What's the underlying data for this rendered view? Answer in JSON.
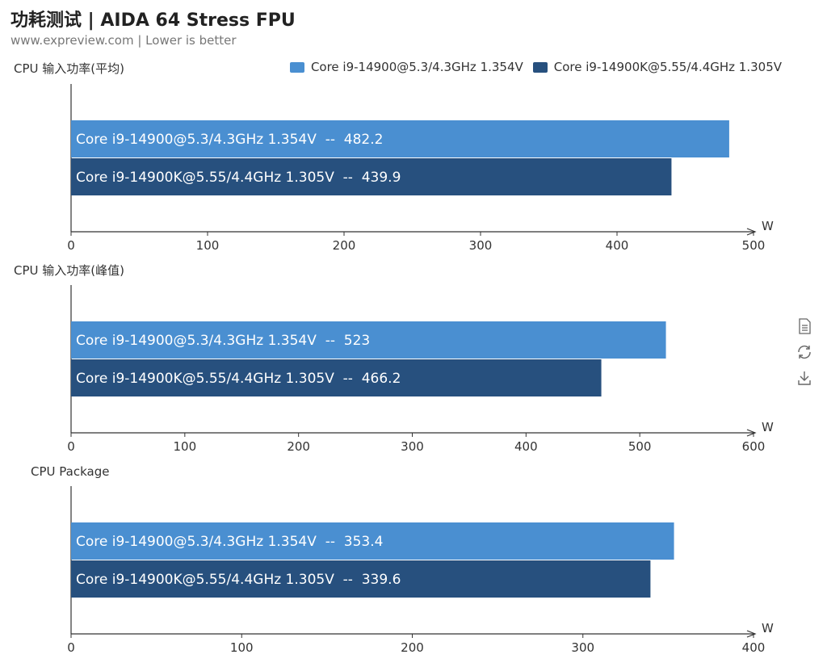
{
  "header": {
    "title": "功耗测试 | AIDA 64 Stress FPU",
    "subtitle": "www.expreview.com | Lower is better"
  },
  "colors": {
    "series1": "#4a8fd1",
    "series2": "#27507e",
    "axis": "#333333",
    "text": "#333333"
  },
  "legend": [
    {
      "label": "Core i9-14900@5.3/4.3GHz 1.354V",
      "color": "#4a8fd1"
    },
    {
      "label": "Core i9-14900K@5.55/4.4GHz 1.305V",
      "color": "#27507e"
    }
  ],
  "toolbox": [
    {
      "icon": "data-view-icon"
    },
    {
      "icon": "restore-icon"
    },
    {
      "icon": "save-image-icon"
    }
  ],
  "chart_data": [
    {
      "type": "bar",
      "orientation": "horizontal",
      "title": "CPU 输入功率(平均)",
      "xlabel": "W",
      "xlim": [
        0,
        500
      ],
      "ticks": [
        0,
        100,
        200,
        300,
        400,
        500
      ],
      "series": [
        {
          "name": "Core i9-14900@5.3/4.3GHz 1.354V",
          "values": [
            482.2
          ],
          "label": "Core i9-14900@5.3/4.3GHz 1.354V  --  482.2"
        },
        {
          "name": "Core i9-14900K@5.55/4.4GHz 1.305V",
          "values": [
            439.9
          ],
          "label": "Core i9-14900K@5.55/4.4GHz 1.305V  --  439.9"
        }
      ]
    },
    {
      "type": "bar",
      "orientation": "horizontal",
      "title": "CPU 输入功率(峰值)",
      "xlabel": "W",
      "xlim": [
        0,
        600
      ],
      "ticks": [
        0,
        100,
        200,
        300,
        400,
        500,
        600
      ],
      "series": [
        {
          "name": "Core i9-14900@5.3/4.3GHz 1.354V",
          "values": [
            523
          ],
          "label": "Core i9-14900@5.3/4.3GHz 1.354V  --  523"
        },
        {
          "name": "Core i9-14900K@5.55/4.4GHz 1.305V",
          "values": [
            466.2
          ],
          "label": "Core i9-14900K@5.55/4.4GHz 1.305V  --  466.2"
        }
      ]
    },
    {
      "type": "bar",
      "orientation": "horizontal",
      "title": "CPU Package",
      "xlabel": "W",
      "xlim": [
        0,
        400
      ],
      "ticks": [
        0,
        100,
        200,
        300,
        400
      ],
      "series": [
        {
          "name": "Core i9-14900@5.3/4.3GHz 1.354V",
          "values": [
            353.4
          ],
          "label": "Core i9-14900@5.3/4.3GHz 1.354V  --  353.4"
        },
        {
          "name": "Core i9-14900K@5.55/4.4GHz 1.305V",
          "values": [
            339.6
          ],
          "label": "Core i9-14900K@5.55/4.4GHz 1.305V  --  339.6"
        }
      ]
    }
  ]
}
